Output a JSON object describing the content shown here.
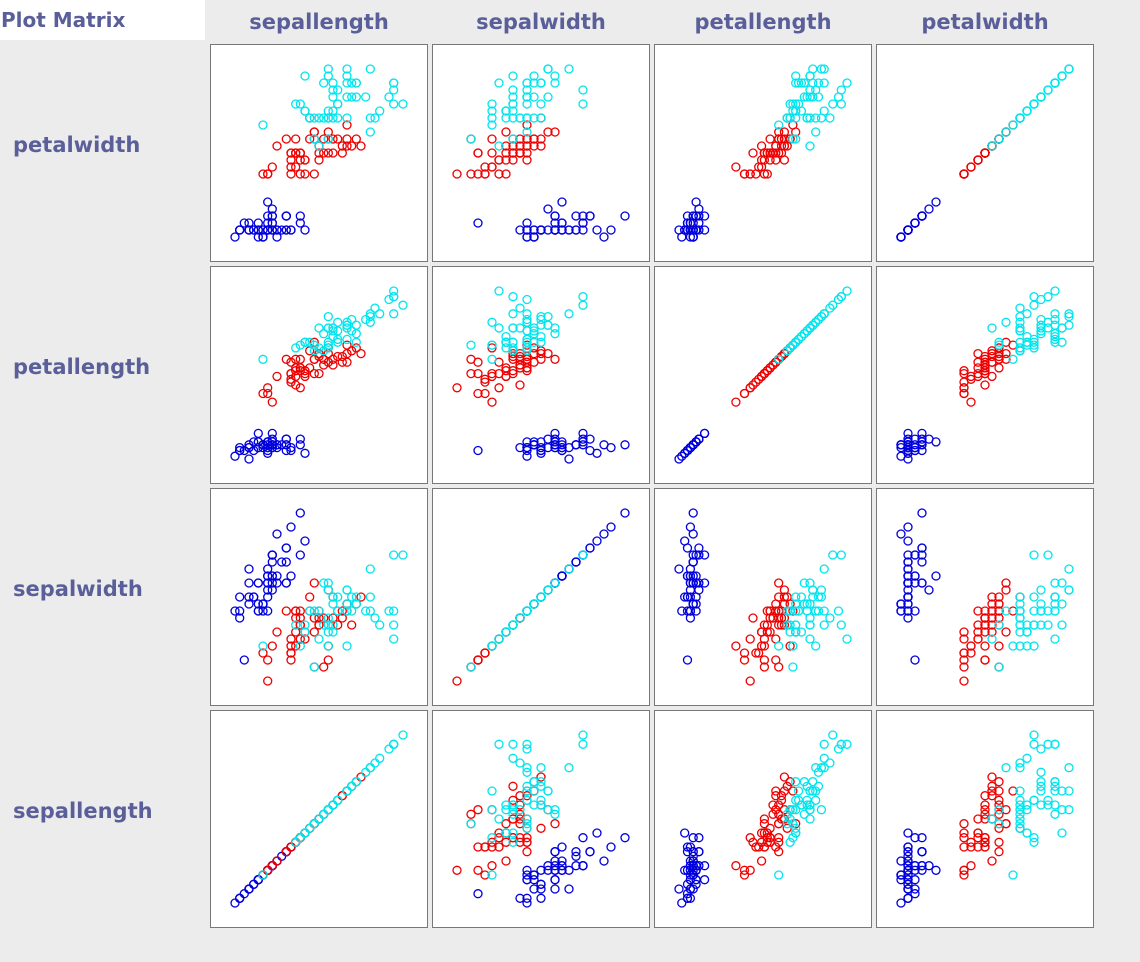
{
  "tab": {
    "label": "Plot Matrix"
  },
  "columns": [
    "sepallength",
    "sepalwidth",
    "petallength",
    "petalwidth"
  ],
  "rows": [
    "petalwidth",
    "petallength",
    "sepalwidth",
    "sepallength"
  ],
  "colors": {
    "setosa": "#0000dd",
    "versicolor": "#ee0000",
    "virginica": "#00e5ee",
    "label": "#5a5f9a",
    "background": "#ececec"
  },
  "chart_data": {
    "type": "scatter",
    "layout": "scatter-matrix",
    "attributes": [
      "sepallength",
      "sepalwidth",
      "petallength",
      "petalwidth"
    ],
    "point_fields": [
      "sepallength",
      "sepalwidth",
      "petallength",
      "petalwidth"
    ],
    "marker": "open-circle",
    "series": [
      {
        "color": "#0000dd",
        "points": [
          [
            5.1,
            3.5,
            1.4,
            0.2
          ],
          [
            4.9,
            3.0,
            1.4,
            0.2
          ],
          [
            4.7,
            3.2,
            1.3,
            0.2
          ],
          [
            4.6,
            3.1,
            1.5,
            0.2
          ],
          [
            5.0,
            3.6,
            1.4,
            0.2
          ],
          [
            5.4,
            3.9,
            1.7,
            0.4
          ],
          [
            4.6,
            3.4,
            1.4,
            0.3
          ],
          [
            5.0,
            3.4,
            1.5,
            0.2
          ],
          [
            4.4,
            2.9,
            1.4,
            0.2
          ],
          [
            4.9,
            3.1,
            1.5,
            0.1
          ],
          [
            5.4,
            3.7,
            1.5,
            0.2
          ],
          [
            4.8,
            3.4,
            1.6,
            0.2
          ],
          [
            4.8,
            3.0,
            1.4,
            0.1
          ],
          [
            4.3,
            3.0,
            1.1,
            0.1
          ],
          [
            5.8,
            4.0,
            1.2,
            0.2
          ],
          [
            5.7,
            4.4,
            1.5,
            0.4
          ],
          [
            5.4,
            3.9,
            1.3,
            0.4
          ],
          [
            5.1,
            3.5,
            1.4,
            0.3
          ],
          [
            5.7,
            3.8,
            1.7,
            0.3
          ],
          [
            5.1,
            3.8,
            1.5,
            0.3
          ],
          [
            5.4,
            3.4,
            1.7,
            0.2
          ],
          [
            5.1,
            3.7,
            1.5,
            0.4
          ],
          [
            4.6,
            3.6,
            1.0,
            0.2
          ],
          [
            5.1,
            3.3,
            1.7,
            0.5
          ],
          [
            4.8,
            3.4,
            1.9,
            0.2
          ],
          [
            5.0,
            3.0,
            1.6,
            0.2
          ],
          [
            5.0,
            3.4,
            1.6,
            0.4
          ],
          [
            5.2,
            3.5,
            1.5,
            0.2
          ],
          [
            5.2,
            3.4,
            1.4,
            0.2
          ],
          [
            4.7,
            3.2,
            1.6,
            0.2
          ],
          [
            4.8,
            3.1,
            1.6,
            0.2
          ],
          [
            5.4,
            3.4,
            1.5,
            0.4
          ],
          [
            5.2,
            4.1,
            1.5,
            0.1
          ],
          [
            5.5,
            4.2,
            1.4,
            0.2
          ],
          [
            4.9,
            3.1,
            1.5,
            0.1
          ],
          [
            5.0,
            3.2,
            1.2,
            0.2
          ],
          [
            5.5,
            3.5,
            1.3,
            0.2
          ],
          [
            4.9,
            3.1,
            1.5,
            0.1
          ],
          [
            4.4,
            3.0,
            1.3,
            0.2
          ],
          [
            5.1,
            3.4,
            1.5,
            0.2
          ],
          [
            5.0,
            3.5,
            1.3,
            0.3
          ],
          [
            4.5,
            2.3,
            1.3,
            0.3
          ],
          [
            4.4,
            3.2,
            1.3,
            0.2
          ],
          [
            5.0,
            3.5,
            1.6,
            0.6
          ],
          [
            5.1,
            3.8,
            1.9,
            0.4
          ],
          [
            4.8,
            3.0,
            1.4,
            0.3
          ],
          [
            5.1,
            3.8,
            1.6,
            0.2
          ],
          [
            4.6,
            3.2,
            1.4,
            0.2
          ],
          [
            5.3,
            3.7,
            1.5,
            0.2
          ],
          [
            5.0,
            3.3,
            1.4,
            0.2
          ]
        ]
      },
      {
        "color": "#ee0000",
        "points": [
          [
            7.0,
            3.2,
            4.7,
            1.4
          ],
          [
            6.4,
            3.2,
            4.5,
            1.5
          ],
          [
            6.9,
            3.1,
            4.9,
            1.5
          ],
          [
            5.5,
            2.3,
            4.0,
            1.3
          ],
          [
            6.5,
            2.8,
            4.6,
            1.5
          ],
          [
            5.7,
            2.8,
            4.5,
            1.3
          ],
          [
            6.3,
            3.3,
            4.7,
            1.6
          ],
          [
            4.9,
            2.4,
            3.3,
            1.0
          ],
          [
            6.6,
            2.9,
            4.6,
            1.3
          ],
          [
            5.2,
            2.7,
            3.9,
            1.4
          ],
          [
            5.0,
            2.0,
            3.5,
            1.0
          ],
          [
            5.9,
            3.0,
            4.2,
            1.5
          ],
          [
            6.0,
            2.2,
            4.0,
            1.0
          ],
          [
            6.1,
            2.9,
            4.7,
            1.4
          ],
          [
            5.6,
            2.9,
            3.6,
            1.3
          ],
          [
            6.7,
            3.1,
            4.4,
            1.4
          ],
          [
            5.6,
            3.0,
            4.5,
            1.5
          ],
          [
            5.8,
            2.7,
            4.1,
            1.0
          ],
          [
            6.2,
            2.2,
            4.5,
            1.5
          ],
          [
            5.6,
            2.5,
            3.9,
            1.1
          ],
          [
            5.9,
            3.2,
            4.8,
            1.8
          ],
          [
            6.1,
            2.8,
            4.0,
            1.3
          ],
          [
            6.3,
            2.5,
            4.9,
            1.5
          ],
          [
            6.1,
            2.8,
            4.7,
            1.2
          ],
          [
            6.4,
            2.9,
            4.3,
            1.3
          ],
          [
            6.6,
            3.0,
            4.4,
            1.4
          ],
          [
            6.8,
            2.8,
            4.8,
            1.4
          ],
          [
            6.7,
            3.0,
            5.0,
            1.7
          ],
          [
            6.0,
            2.9,
            4.5,
            1.5
          ],
          [
            5.7,
            2.6,
            3.5,
            1.0
          ],
          [
            5.5,
            2.4,
            3.8,
            1.1
          ],
          [
            5.5,
            2.4,
            3.7,
            1.0
          ],
          [
            5.8,
            2.7,
            3.9,
            1.2
          ],
          [
            6.0,
            2.7,
            5.1,
            1.6
          ],
          [
            5.4,
            3.0,
            4.5,
            1.5
          ],
          [
            6.0,
            3.4,
            4.5,
            1.6
          ],
          [
            6.7,
            3.1,
            4.7,
            1.5
          ],
          [
            6.3,
            2.3,
            4.4,
            1.3
          ],
          [
            5.6,
            3.0,
            4.1,
            1.3
          ],
          [
            5.5,
            2.5,
            4.0,
            1.3
          ],
          [
            5.5,
            2.6,
            4.4,
            1.2
          ],
          [
            6.1,
            3.0,
            4.6,
            1.4
          ],
          [
            5.8,
            2.6,
            4.0,
            1.2
          ],
          [
            5.0,
            2.3,
            3.3,
            1.0
          ],
          [
            5.6,
            2.7,
            4.2,
            1.3
          ],
          [
            5.7,
            3.0,
            4.2,
            1.2
          ],
          [
            5.7,
            2.9,
            4.2,
            1.3
          ],
          [
            6.2,
            2.9,
            4.3,
            1.3
          ],
          [
            5.1,
            2.5,
            3.0,
            1.1
          ],
          [
            5.7,
            2.8,
            4.1,
            1.3
          ]
        ]
      },
      {
        "color": "#00e5ee",
        "points": [
          [
            6.3,
            3.3,
            6.0,
            2.5
          ],
          [
            5.8,
            2.7,
            5.1,
            1.9
          ],
          [
            7.1,
            3.0,
            5.9,
            2.1
          ],
          [
            6.3,
            2.9,
            5.6,
            1.8
          ],
          [
            6.5,
            3.0,
            5.8,
            2.2
          ],
          [
            7.6,
            3.0,
            6.6,
            2.1
          ],
          [
            4.9,
            2.5,
            4.5,
            1.7
          ],
          [
            7.3,
            2.9,
            6.3,
            1.8
          ],
          [
            6.7,
            2.5,
            5.8,
            1.8
          ],
          [
            7.2,
            3.6,
            6.1,
            2.5
          ],
          [
            6.5,
            3.2,
            5.1,
            2.0
          ],
          [
            6.4,
            2.7,
            5.3,
            1.9
          ],
          [
            6.8,
            3.0,
            5.5,
            2.1
          ],
          [
            5.7,
            2.5,
            5.0,
            2.0
          ],
          [
            5.8,
            2.8,
            5.1,
            2.4
          ],
          [
            6.4,
            3.2,
            5.3,
            2.3
          ],
          [
            6.5,
            3.0,
            5.5,
            1.8
          ],
          [
            7.7,
            3.8,
            6.7,
            2.2
          ],
          [
            7.7,
            2.6,
            6.9,
            2.3
          ],
          [
            6.0,
            2.2,
            5.0,
            1.5
          ],
          [
            6.9,
            3.2,
            5.7,
            2.3
          ],
          [
            5.6,
            2.8,
            4.9,
            2.0
          ],
          [
            7.7,
            2.8,
            6.7,
            2.0
          ],
          [
            6.3,
            2.7,
            4.9,
            1.8
          ],
          [
            6.7,
            3.3,
            5.7,
            2.1
          ],
          [
            7.2,
            3.2,
            6.0,
            1.8
          ],
          [
            6.2,
            2.8,
            4.8,
            1.8
          ],
          [
            6.1,
            3.0,
            4.9,
            1.8
          ],
          [
            6.4,
            2.8,
            5.6,
            2.1
          ],
          [
            7.2,
            3.0,
            5.8,
            1.6
          ],
          [
            7.4,
            2.8,
            6.1,
            1.9
          ],
          [
            7.9,
            3.8,
            6.4,
            2.0
          ],
          [
            6.4,
            2.8,
            5.6,
            2.2
          ],
          [
            6.3,
            2.8,
            5.1,
            1.5
          ],
          [
            6.1,
            2.6,
            5.6,
            1.4
          ],
          [
            7.7,
            3.0,
            6.1,
            2.3
          ],
          [
            6.3,
            3.4,
            5.6,
            2.4
          ],
          [
            6.4,
            3.1,
            5.5,
            1.8
          ],
          [
            6.0,
            3.0,
            4.8,
            1.8
          ],
          [
            6.9,
            3.1,
            5.4,
            2.1
          ],
          [
            6.7,
            3.1,
            5.6,
            2.4
          ],
          [
            6.9,
            3.1,
            5.1,
            2.3
          ],
          [
            5.8,
            2.7,
            5.1,
            1.9
          ],
          [
            6.8,
            3.2,
            5.9,
            2.3
          ],
          [
            6.7,
            3.3,
            5.7,
            2.5
          ],
          [
            6.7,
            3.0,
            5.2,
            2.3
          ],
          [
            6.3,
            2.5,
            5.0,
            1.9
          ],
          [
            6.5,
            3.0,
            5.2,
            2.0
          ],
          [
            6.2,
            3.4,
            5.4,
            2.3
          ],
          [
            5.9,
            3.0,
            5.1,
            1.8
          ]
        ]
      }
    ]
  }
}
